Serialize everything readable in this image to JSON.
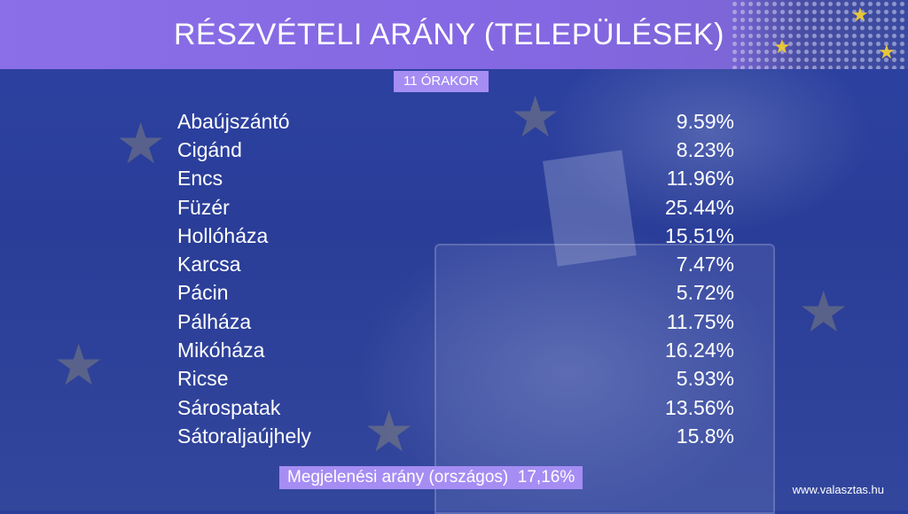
{
  "header": {
    "title": "RÉSZVÉTELI ARÁNY (TELEPÜLÉSEK)",
    "time_label": "11 ÓRAKOR"
  },
  "rows": [
    {
      "name": "Abaújszántó",
      "value": "9.59%"
    },
    {
      "name": "Cigánd",
      "value": "8.23%"
    },
    {
      "name": "Encs",
      "value": "11.96%"
    },
    {
      "name": "Füzér",
      "value": "25.44%"
    },
    {
      "name": "Hollóháza",
      "value": "15.51%"
    },
    {
      "name": "Karcsa",
      "value": "7.47%"
    },
    {
      "name": "Pácin",
      "value": "5.72%"
    },
    {
      "name": "Pálháza",
      "value": "11.75%"
    },
    {
      "name": "Mikóháza",
      "value": "16.24%"
    },
    {
      "name": "Ricse",
      "value": "5.93%"
    },
    {
      "name": "Sárospatak",
      "value": "13.56%"
    },
    {
      "name": "Sátoraljaújhely",
      "value": "15.8%"
    }
  ],
  "footer": {
    "national_turnout": "Megjelenési arány (országos)  17,16%",
    "source": "www.valasztas.hu"
  },
  "colors": {
    "title_bar": "#8a6fe8",
    "badge": "#a58df3",
    "background": "#2b3f9a",
    "eu_star": "#e8c63a",
    "text": "#ffffff"
  },
  "icons": [
    "eu-star-icon",
    "ballot-box-icon",
    "ballot-paper-icon"
  ]
}
